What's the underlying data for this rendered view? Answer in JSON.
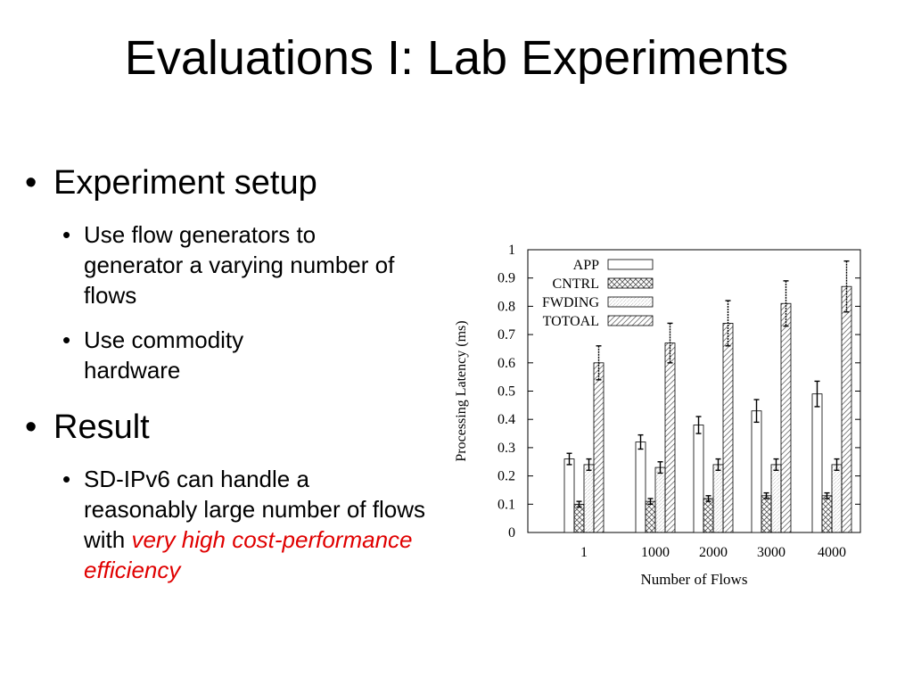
{
  "slide": {
    "title": "Evaluations I: Lab Experiments",
    "bullet_glyph": "•",
    "sections": [
      {
        "heading": "Experiment setup",
        "items": [
          {
            "text": "Use flow generators to generator a varying number of flows"
          },
          {
            "text": "Use commodity hardware"
          }
        ]
      },
      {
        "heading": "Result",
        "items": [
          {
            "text_plain": "SD-IPv6 can handle a reasonably large number of flows with ",
            "text_highlight": "very high cost-performance efficiency",
            "highlight_color": "#e00000"
          }
        ]
      }
    ]
  },
  "chart_data": {
    "type": "bar",
    "xlabel": "Number of Flows",
    "ylabel": "Processing Latency (ms)",
    "ylim": [
      0,
      1
    ],
    "yticks": [
      "0",
      "0.1",
      "0.2",
      "0.3",
      "0.4",
      "0.5",
      "0.6",
      "0.7",
      "0.8",
      "0.9",
      "1"
    ],
    "categories": [
      "1",
      "1000",
      "2000",
      "3000",
      "4000"
    ],
    "legend_position": "top-left",
    "series": [
      {
        "name": "APP",
        "pattern": "empty",
        "values": [
          0.26,
          0.32,
          0.38,
          0.43,
          0.49
        ],
        "errors": [
          0.02,
          0.025,
          0.03,
          0.04,
          0.045
        ]
      },
      {
        "name": "CNTRL",
        "pattern": "crosshatch",
        "values": [
          0.1,
          0.11,
          0.12,
          0.13,
          0.13
        ],
        "errors": [
          0.01,
          0.01,
          0.01,
          0.01,
          0.01
        ]
      },
      {
        "name": "FWDING",
        "pattern": "dots",
        "values": [
          0.24,
          0.23,
          0.24,
          0.24,
          0.24
        ],
        "errors": [
          0.02,
          0.02,
          0.02,
          0.02,
          0.02
        ]
      },
      {
        "name": "TOTOAL",
        "pattern": "diagonal",
        "values": [
          0.6,
          0.67,
          0.74,
          0.81,
          0.87
        ],
        "errors": [
          0.06,
          0.07,
          0.08,
          0.08,
          0.09
        ]
      }
    ]
  }
}
